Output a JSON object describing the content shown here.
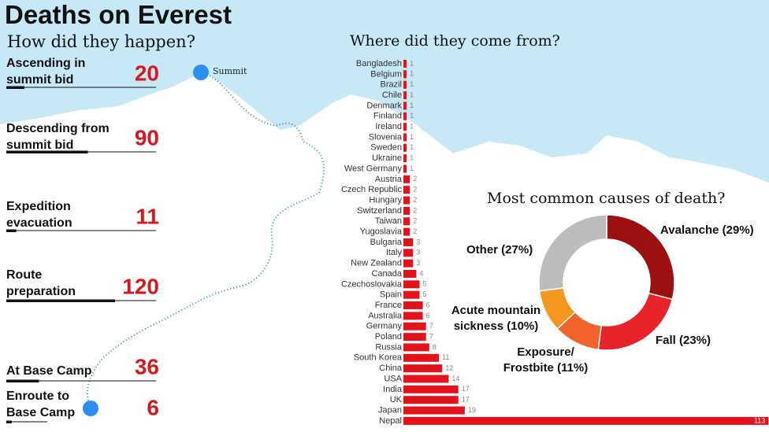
{
  "title": "Deaths on Everest",
  "map": {
    "summit": "Summit"
  },
  "chart_data": [
    {
      "type": "phase-bar",
      "title": "How did they happen?",
      "categories": [
        "Ascending in summit bid",
        "Descending from summit bid",
        "Expedition evacuation",
        "Route preparation",
        "At Base Camp",
        "Enroute to Base Camp"
      ],
      "values": [
        20,
        90,
        11,
        120,
        36,
        6
      ],
      "color": "#d7191f"
    },
    {
      "type": "hbar",
      "title": "Where did they come from?",
      "categories": [
        "Bangladesh",
        "Belgium",
        "Brazil",
        "Chile",
        "Denmark",
        "Finland",
        "Ireland",
        "Slovenia",
        "Sweden",
        "Ukraine",
        "West Germany",
        "Austria",
        "Czech Republic",
        "Hungary",
        "Switzerland",
        "Taiwan",
        "Yugoslavia",
        "Bulgaria",
        "Italy",
        "New Zealand",
        "Canada",
        "Czechoslovakia",
        "Spain",
        "France",
        "Australia",
        "Germany",
        "Poland",
        "Russia",
        "South Korea",
        "China",
        "USA",
        "India",
        "UK",
        "Japan",
        "Nepal"
      ],
      "values": [
        1,
        1,
        1,
        1,
        1,
        1,
        1,
        1,
        1,
        1,
        1,
        2,
        2,
        2,
        2,
        2,
        2,
        3,
        3,
        3,
        4,
        5,
        5,
        6,
        6,
        7,
        7,
        8,
        11,
        12,
        14,
        17,
        17,
        19,
        113
      ],
      "color": "#e3121b"
    },
    {
      "type": "donut",
      "title": "Most common causes of death?",
      "categories": [
        "Avalanche (29%)",
        "Fall (23%)",
        "Exposure/ Frostbite (11%)",
        "Acute mountain sickness (10%)",
        "Other (27%)"
      ],
      "values": [
        29,
        23,
        11,
        10,
        27
      ],
      "colors": [
        "#9c1010",
        "#e8232a",
        "#f0632a",
        "#f5971e",
        "#bcbcbc"
      ]
    }
  ]
}
